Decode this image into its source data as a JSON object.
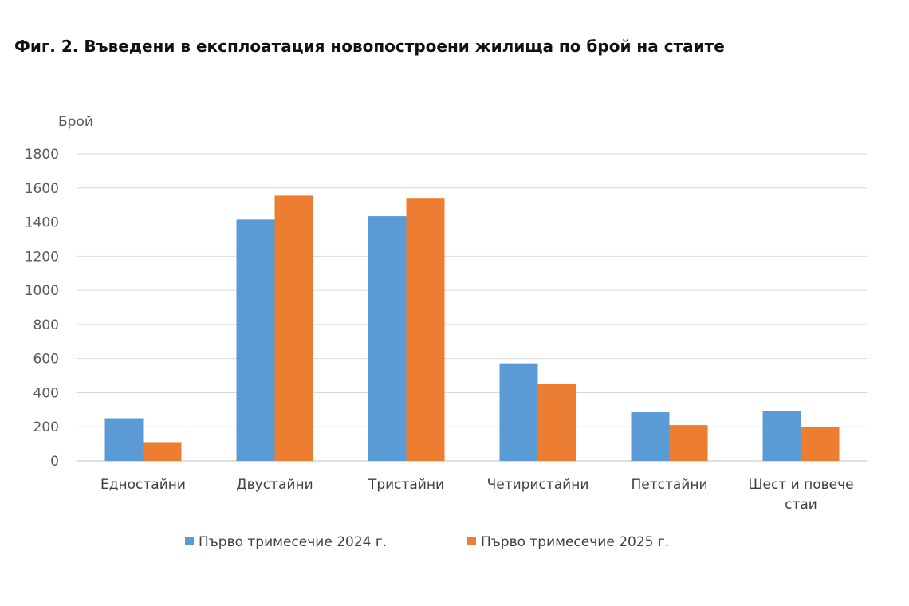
{
  "chart_data": {
    "type": "bar",
    "title": "Фиг. 2. Въведени в експлоатация новопостроени жилища по брой на стаите",
    "ylabel": "Брой",
    "xlabel": "",
    "ylim": [
      0,
      1800
    ],
    "yticks": [
      0,
      200,
      400,
      600,
      800,
      1000,
      1200,
      1400,
      1600,
      1800
    ],
    "grid": true,
    "legend_position": "bottom",
    "categories": [
      [
        "Едностайни"
      ],
      [
        "Двустайни"
      ],
      [
        "Тристайни"
      ],
      [
        "Четиристайни"
      ],
      [
        "Петстайни"
      ],
      [
        "Шест и повече",
        "стаи"
      ]
    ],
    "series": [
      {
        "name": "Първо тримесечие 2024 г.",
        "color": "#5B9BD5",
        "values": [
          250,
          1415,
          1435,
          572,
          285,
          292
        ]
      },
      {
        "name": "Първо тримесечие 2025 г.",
        "color": "#ED7D31",
        "values": [
          110,
          1555,
          1542,
          452,
          210,
          198
        ]
      }
    ]
  }
}
